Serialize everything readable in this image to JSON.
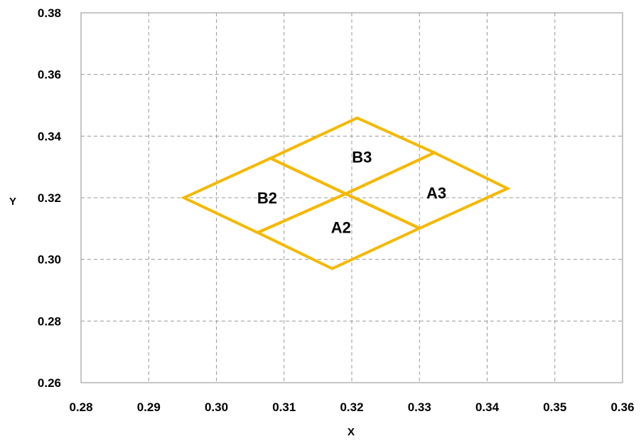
{
  "chart_data": {
    "type": "line",
    "title": "",
    "xlabel": "X",
    "ylabel": "Y",
    "xlim": [
      0.28,
      0.36
    ],
    "ylim": [
      0.26,
      0.38
    ],
    "x_ticks": [
      "0.28",
      "0.29",
      "0.30",
      "0.31",
      "0.32",
      "0.33",
      "0.34",
      "0.35",
      "0.36"
    ],
    "y_ticks": [
      "0.38",
      "0.36",
      "0.34",
      "0.32",
      "0.30",
      "0.28",
      "0.26"
    ],
    "grid": true,
    "legend": "none",
    "line_color": "#F5B800",
    "regions": [
      {
        "label": "B3",
        "label_at": [
          0.3215,
          0.3333
        ],
        "vertices": [
          [
            0.3208,
            0.3459
          ],
          [
            0.3322,
            0.3346
          ],
          [
            0.3191,
            0.3213
          ],
          [
            0.308,
            0.3328
          ]
        ]
      },
      {
        "label": "A3",
        "label_at": [
          0.3325,
          0.3216
        ],
        "vertices": [
          [
            0.3322,
            0.3346
          ],
          [
            0.343,
            0.323
          ],
          [
            0.33,
            0.3101
          ],
          [
            0.3191,
            0.3213
          ]
        ]
      },
      {
        "label": "B2",
        "label_at": [
          0.3075,
          0.32
        ],
        "vertices": [
          [
            0.308,
            0.3328
          ],
          [
            0.3191,
            0.3213
          ],
          [
            0.3061,
            0.3087
          ],
          [
            0.2952,
            0.32
          ]
        ]
      },
      {
        "label": "A2",
        "label_at": [
          0.3184,
          0.3104
        ],
        "vertices": [
          [
            0.3191,
            0.3213
          ],
          [
            0.33,
            0.3101
          ],
          [
            0.3171,
            0.297
          ],
          [
            0.3061,
            0.3087
          ]
        ]
      }
    ]
  }
}
